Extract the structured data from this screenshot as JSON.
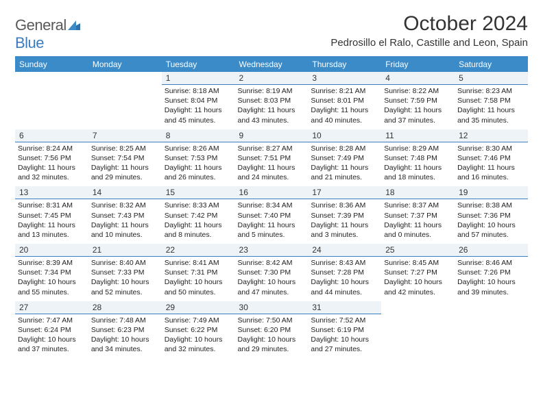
{
  "brand": {
    "text1": "General",
    "text2": "Blue"
  },
  "title": "October 2024",
  "subtitle": "Pedrosillo el Ralo, Castille and Leon, Spain",
  "header_bg": "#3b8bc9",
  "header_fg": "#ffffff",
  "daynum_bg": "#eef3f7",
  "daynum_border": "#3b7bbf",
  "page_bg": "#ffffff",
  "text_color": "#222222",
  "days": [
    "Sunday",
    "Monday",
    "Tuesday",
    "Wednesday",
    "Thursday",
    "Friday",
    "Saturday"
  ],
  "weeks": [
    [
      null,
      null,
      {
        "n": "1",
        "sr": "8:18 AM",
        "ss": "8:04 PM",
        "dl": "11 hours and 45 minutes."
      },
      {
        "n": "2",
        "sr": "8:19 AM",
        "ss": "8:03 PM",
        "dl": "11 hours and 43 minutes."
      },
      {
        "n": "3",
        "sr": "8:21 AM",
        "ss": "8:01 PM",
        "dl": "11 hours and 40 minutes."
      },
      {
        "n": "4",
        "sr": "8:22 AM",
        "ss": "7:59 PM",
        "dl": "11 hours and 37 minutes."
      },
      {
        "n": "5",
        "sr": "8:23 AM",
        "ss": "7:58 PM",
        "dl": "11 hours and 35 minutes."
      }
    ],
    [
      {
        "n": "6",
        "sr": "8:24 AM",
        "ss": "7:56 PM",
        "dl": "11 hours and 32 minutes."
      },
      {
        "n": "7",
        "sr": "8:25 AM",
        "ss": "7:54 PM",
        "dl": "11 hours and 29 minutes."
      },
      {
        "n": "8",
        "sr": "8:26 AM",
        "ss": "7:53 PM",
        "dl": "11 hours and 26 minutes."
      },
      {
        "n": "9",
        "sr": "8:27 AM",
        "ss": "7:51 PM",
        "dl": "11 hours and 24 minutes."
      },
      {
        "n": "10",
        "sr": "8:28 AM",
        "ss": "7:49 PM",
        "dl": "11 hours and 21 minutes."
      },
      {
        "n": "11",
        "sr": "8:29 AM",
        "ss": "7:48 PM",
        "dl": "11 hours and 18 minutes."
      },
      {
        "n": "12",
        "sr": "8:30 AM",
        "ss": "7:46 PM",
        "dl": "11 hours and 16 minutes."
      }
    ],
    [
      {
        "n": "13",
        "sr": "8:31 AM",
        "ss": "7:45 PM",
        "dl": "11 hours and 13 minutes."
      },
      {
        "n": "14",
        "sr": "8:32 AM",
        "ss": "7:43 PM",
        "dl": "11 hours and 10 minutes."
      },
      {
        "n": "15",
        "sr": "8:33 AM",
        "ss": "7:42 PM",
        "dl": "11 hours and 8 minutes."
      },
      {
        "n": "16",
        "sr": "8:34 AM",
        "ss": "7:40 PM",
        "dl": "11 hours and 5 minutes."
      },
      {
        "n": "17",
        "sr": "8:36 AM",
        "ss": "7:39 PM",
        "dl": "11 hours and 3 minutes."
      },
      {
        "n": "18",
        "sr": "8:37 AM",
        "ss": "7:37 PM",
        "dl": "11 hours and 0 minutes."
      },
      {
        "n": "19",
        "sr": "8:38 AM",
        "ss": "7:36 PM",
        "dl": "10 hours and 57 minutes."
      }
    ],
    [
      {
        "n": "20",
        "sr": "8:39 AM",
        "ss": "7:34 PM",
        "dl": "10 hours and 55 minutes."
      },
      {
        "n": "21",
        "sr": "8:40 AM",
        "ss": "7:33 PM",
        "dl": "10 hours and 52 minutes."
      },
      {
        "n": "22",
        "sr": "8:41 AM",
        "ss": "7:31 PM",
        "dl": "10 hours and 50 minutes."
      },
      {
        "n": "23",
        "sr": "8:42 AM",
        "ss": "7:30 PM",
        "dl": "10 hours and 47 minutes."
      },
      {
        "n": "24",
        "sr": "8:43 AM",
        "ss": "7:28 PM",
        "dl": "10 hours and 44 minutes."
      },
      {
        "n": "25",
        "sr": "8:45 AM",
        "ss": "7:27 PM",
        "dl": "10 hours and 42 minutes."
      },
      {
        "n": "26",
        "sr": "8:46 AM",
        "ss": "7:26 PM",
        "dl": "10 hours and 39 minutes."
      }
    ],
    [
      {
        "n": "27",
        "sr": "7:47 AM",
        "ss": "6:24 PM",
        "dl": "10 hours and 37 minutes."
      },
      {
        "n": "28",
        "sr": "7:48 AM",
        "ss": "6:23 PM",
        "dl": "10 hours and 34 minutes."
      },
      {
        "n": "29",
        "sr": "7:49 AM",
        "ss": "6:22 PM",
        "dl": "10 hours and 32 minutes."
      },
      {
        "n": "30",
        "sr": "7:50 AM",
        "ss": "6:20 PM",
        "dl": "10 hours and 29 minutes."
      },
      {
        "n": "31",
        "sr": "7:52 AM",
        "ss": "6:19 PM",
        "dl": "10 hours and 27 minutes."
      },
      null,
      null
    ]
  ],
  "labels": {
    "sunrise": "Sunrise:",
    "sunset": "Sunset:",
    "daylight": "Daylight:"
  }
}
